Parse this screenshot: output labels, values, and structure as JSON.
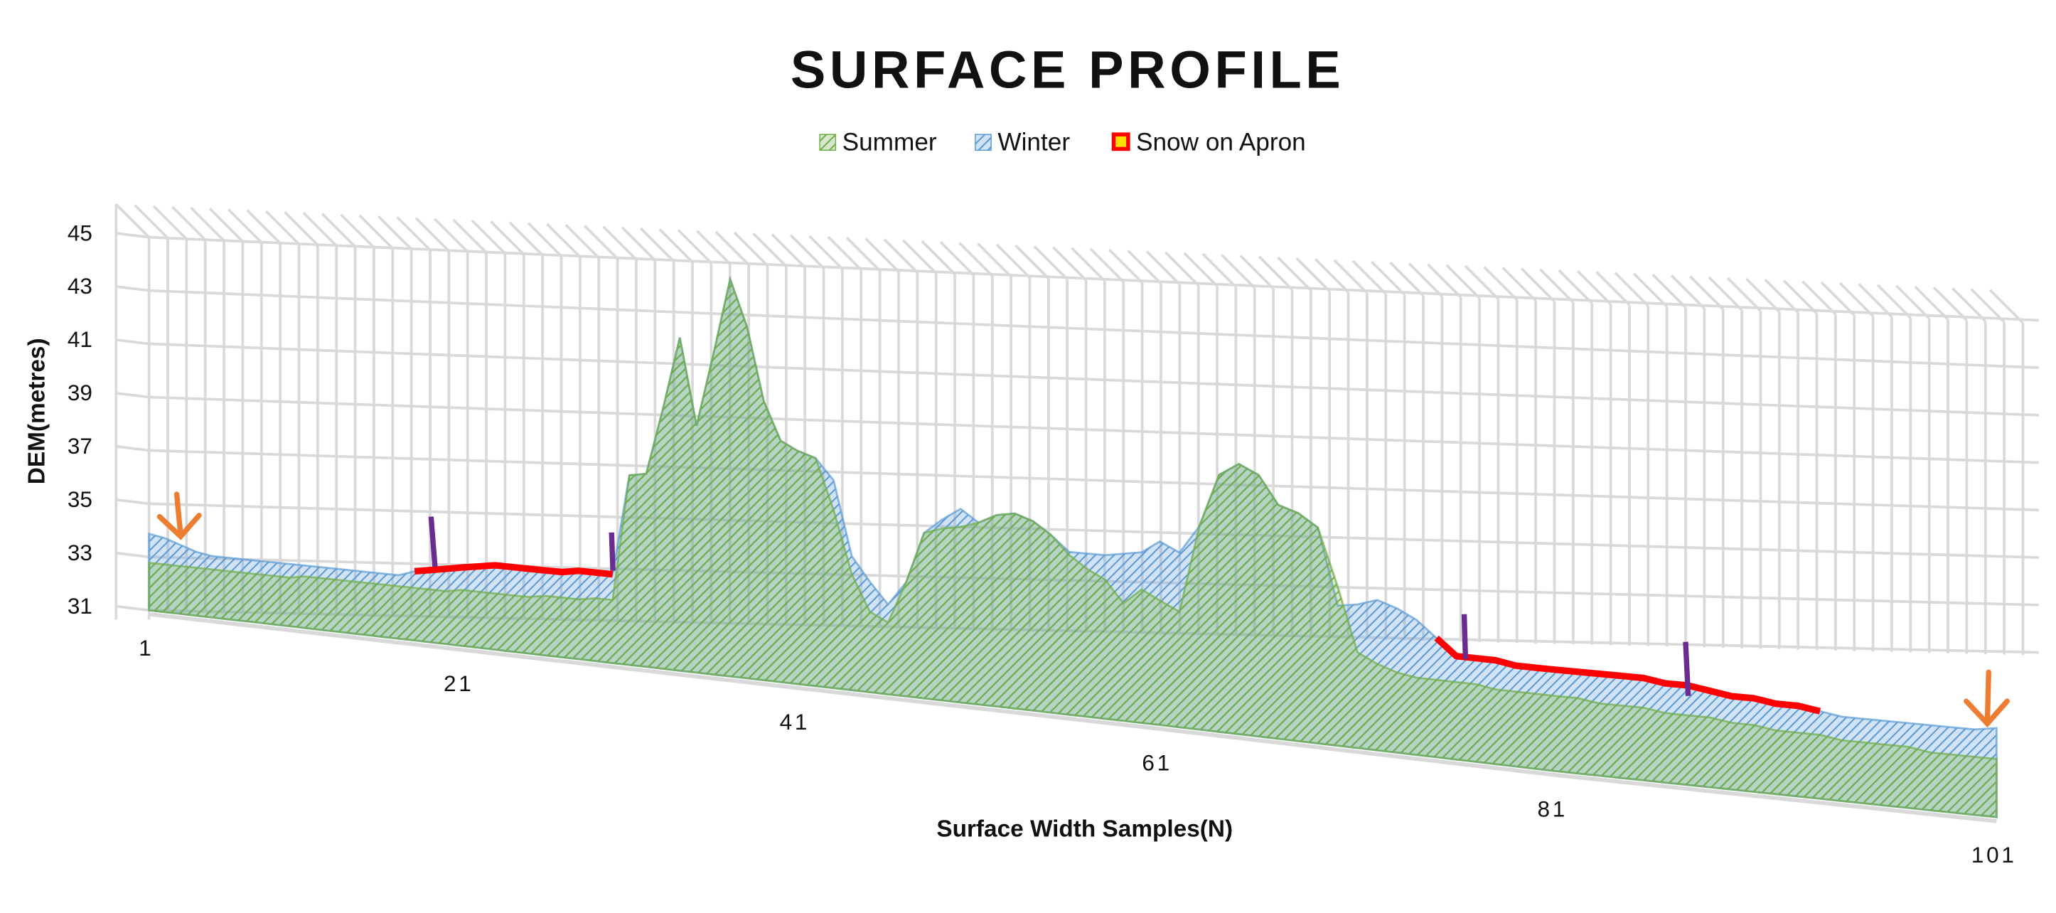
{
  "chart_data": {
    "type": "area3d",
    "title": "SURFACE PROFILE",
    "x_label": "Surface Width Samples(N)",
    "y_label": "DEM(metres)",
    "categories": [
      "1",
      null,
      null,
      null,
      null,
      null,
      null,
      null,
      null,
      null,
      null,
      null,
      null,
      null,
      null,
      null,
      null,
      null,
      null,
      null,
      "21",
      null,
      null,
      null,
      null,
      null,
      null,
      null,
      null,
      null,
      null,
      null,
      null,
      null,
      null,
      null,
      null,
      null,
      null,
      null,
      "41",
      null,
      null,
      null,
      null,
      null,
      null,
      null,
      null,
      null,
      null,
      null,
      null,
      null,
      null,
      null,
      null,
      null,
      null,
      null,
      "61",
      null,
      null,
      null,
      null,
      null,
      null,
      null,
      null,
      null,
      null,
      null,
      null,
      null,
      null,
      null,
      null,
      null,
      null,
      null,
      "81",
      null,
      null,
      null,
      null,
      null,
      null,
      null,
      null,
      null,
      null,
      null,
      null,
      null,
      null,
      null,
      null,
      null,
      null,
      null,
      "101"
    ],
    "ylim": [
      31,
      45
    ],
    "yticks": [
      31,
      33,
      35,
      37,
      39,
      41,
      43,
      45
    ],
    "grid": true,
    "legend": "top",
    "series": [
      {
        "name": "Summer",
        "color": "#70ad47",
        "values": [
          32.8,
          32.8,
          32.8,
          32.8,
          32.8,
          32.8,
          32.8,
          32.8,
          32.8,
          32.8,
          32.9,
          32.9,
          32.9,
          32.9,
          32.9,
          32.9,
          32.9,
          32.9,
          32.9,
          32.9,
          33.0,
          33.0,
          33.0,
          33.0,
          33.0,
          33.1,
          33.1,
          33.1,
          33.2,
          33.2,
          37.6,
          37.7,
          40.0,
          42.5,
          39.5,
          42.0,
          44.6,
          43.0,
          40.5,
          39.2,
          38.9,
          38.7,
          37.0,
          34.9,
          33.7,
          33.4,
          34.8,
          36.5,
          36.7,
          36.8,
          37.0,
          37.3,
          37.4,
          37.2,
          36.8,
          36.2,
          35.8,
          35.5,
          34.8,
          35.3,
          35.0,
          34.7,
          37.5,
          39.2,
          39.6,
          39.3,
          38.4,
          38.2,
          37.8,
          36.0,
          34.0,
          33.7,
          33.5,
          33.4,
          33.4,
          33.4,
          33.4,
          33.3,
          33.3,
          33.3,
          33.3,
          33.3,
          33.2,
          33.2,
          33.2,
          33.1,
          33.1,
          33.1,
          33.0,
          33.0,
          32.9,
          32.9,
          32.9,
          32.8,
          32.8,
          32.8,
          32.8,
          32.7,
          32.7,
          32.7,
          32.7
        ]
      },
      {
        "name": "Winter",
        "color": "#5b9bd5",
        "values": [
          33.9,
          33.8,
          33.6,
          33.4,
          33.3,
          33.3,
          33.3,
          33.3,
          33.3,
          33.3,
          33.3,
          33.3,
          33.3,
          33.3,
          33.3,
          33.3,
          33.3,
          33.5,
          33.6,
          33.7,
          33.8,
          33.9,
          34.0,
          34.0,
          34.0,
          34.0,
          34.0,
          34.1,
          34.1,
          34.1,
          37.6,
          37.7,
          40.0,
          42.5,
          39.5,
          42.0,
          44.6,
          43.0,
          40.5,
          39.2,
          38.9,
          38.7,
          38.0,
          35.5,
          34.7,
          34.0,
          34.8,
          36.5,
          37.0,
          37.4,
          37.0,
          37.3,
          37.4,
          37.2,
          36.8,
          36.3,
          36.3,
          36.3,
          36.4,
          36.5,
          36.9,
          36.6,
          37.5,
          39.2,
          39.6,
          39.3,
          38.4,
          38.2,
          37.8,
          35.4,
          35.5,
          35.7,
          35.5,
          35.2,
          34.7,
          34.2,
          34.2,
          34.2,
          34.1,
          34.1,
          34.1,
          34.1,
          34.1,
          34.1,
          34.1,
          34.0,
          34.0,
          33.9,
          33.8,
          33.8,
          33.7,
          33.7,
          33.6,
          33.5,
          33.5,
          33.5,
          33.5,
          33.5,
          33.5,
          33.5,
          33.6
        ]
      },
      {
        "name": "Snow on Apron",
        "color": "#ff0000",
        "values": [
          null,
          null,
          null,
          null,
          null,
          null,
          null,
          null,
          null,
          null,
          null,
          null,
          null,
          null,
          null,
          null,
          null,
          33.5,
          33.6,
          33.7,
          33.8,
          33.9,
          34.0,
          34.0,
          34.0,
          34.0,
          34.0,
          34.1,
          34.1,
          34.1,
          null,
          null,
          null,
          null,
          null,
          null,
          null,
          null,
          null,
          null,
          null,
          null,
          null,
          null,
          null,
          null,
          null,
          null,
          null,
          null,
          null,
          null,
          null,
          null,
          null,
          null,
          null,
          null,
          null,
          null,
          null,
          null,
          null,
          null,
          null,
          null,
          null,
          null,
          null,
          null,
          null,
          null,
          null,
          null,
          34.7,
          34.2,
          34.2,
          34.2,
          34.1,
          34.1,
          34.1,
          34.1,
          34.1,
          34.1,
          34.1,
          34.0,
          34.0,
          33.9,
          33.8,
          33.8,
          33.7,
          33.7,
          33.6,
          null,
          null,
          null,
          null,
          null,
          null,
          null,
          null
        ]
      }
    ]
  }
}
